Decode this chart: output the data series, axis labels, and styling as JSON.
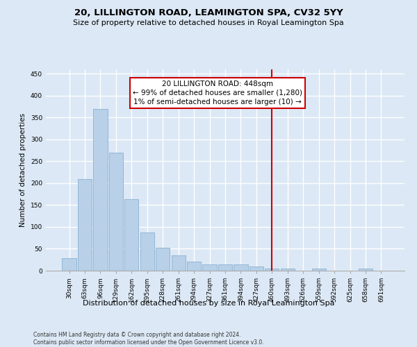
{
  "title": "20, LILLINGTON ROAD, LEAMINGTON SPA, CV32 5YY",
  "subtitle": "Size of property relative to detached houses in Royal Leamington Spa",
  "xlabel": "Distribution of detached houses by size in Royal Leamington Spa",
  "ylabel": "Number of detached properties",
  "footnote": "Contains HM Land Registry data © Crown copyright and database right 2024.\nContains public sector information licensed under the Open Government Licence v3.0.",
  "bar_labels": [
    "30sqm",
    "63sqm",
    "96sqm",
    "129sqm",
    "162sqm",
    "195sqm",
    "228sqm",
    "261sqm",
    "294sqm",
    "327sqm",
    "361sqm",
    "394sqm",
    "427sqm",
    "460sqm",
    "493sqm",
    "526sqm",
    "559sqm",
    "592sqm",
    "625sqm",
    "658sqm",
    "691sqm"
  ],
  "bar_values": [
    28,
    210,
    370,
    270,
    163,
    88,
    53,
    35,
    20,
    15,
    15,
    15,
    10,
    5,
    5,
    0,
    5,
    0,
    0,
    5,
    0
  ],
  "bar_color": "#b8d0e8",
  "bar_edge_color": "#8ab0d0",
  "bg_color": "#dce8f5",
  "grid_color": "#ffffff",
  "vline_color": "#cc0000",
  "vline_pos": 13.0,
  "annotation_text": "20 LILLINGTON ROAD: 448sqm\n← 99% of detached houses are smaller (1,280)\n1% of semi-detached houses are larger (10) →",
  "annotation_box_edge_color": "#cc0000",
  "annotation_box_face_color": "#ffffff",
  "ylim": [
    0,
    460
  ],
  "yticks": [
    0,
    50,
    100,
    150,
    200,
    250,
    300,
    350,
    400,
    450
  ],
  "title_fontsize": 9.5,
  "subtitle_fontsize": 8,
  "ylabel_fontsize": 7.5,
  "xlabel_fontsize": 8,
  "tick_fontsize": 6.5,
  "ann_fontsize": 7.5,
  "footnote_fontsize": 5.5
}
